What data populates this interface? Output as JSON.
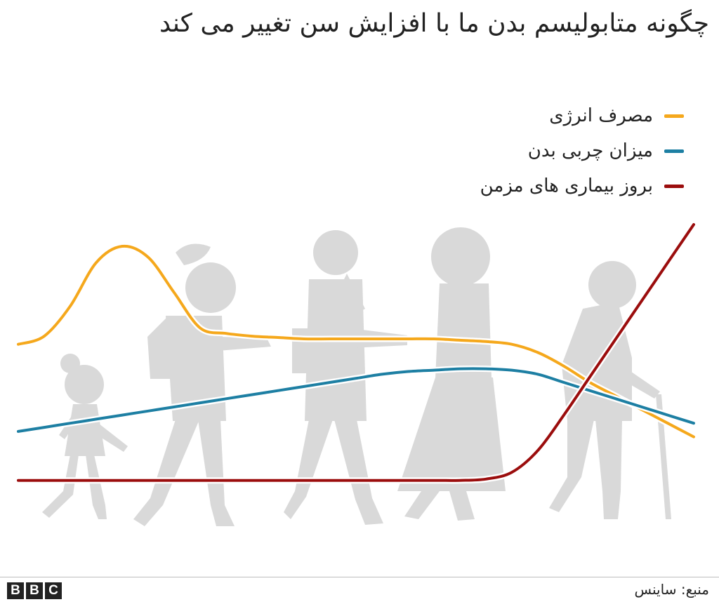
{
  "title": "چگونه متابولیسم بدن ما با افزایش سن تغییر می کند",
  "footer": {
    "source": "منبع: ساینس",
    "logo_letters": [
      "B",
      "B",
      "C"
    ]
  },
  "chart_data": {
    "type": "line",
    "title": "چگونه متابولیسم بدن ما با افزایش سن تغییر می کند",
    "xlabel": "",
    "ylabel": "",
    "grid": false,
    "legend_position": "top-right",
    "x": [
      0,
      1,
      2,
      3,
      4,
      5,
      6,
      7,
      8,
      9,
      10,
      11,
      12,
      13,
      14,
      15,
      16,
      17,
      18,
      19,
      20,
      21,
      22,
      23,
      24,
      25,
      26
    ],
    "xlim": [
      0,
      26
    ],
    "ylim": [
      0,
      100
    ],
    "series": [
      {
        "name": "مصرف انرژی",
        "color": "#f5a81c",
        "values": [
          56,
          59,
          70,
          86,
          92,
          88,
          75,
          62,
          60,
          59,
          58.5,
          58,
          58,
          58,
          58,
          58,
          58,
          57.5,
          57,
          56,
          53,
          48,
          42,
          37,
          32,
          27,
          22
        ]
      },
      {
        "name": "میزان چربی بدن",
        "color": "#1d7fa3",
        "values": [
          24,
          25.5,
          27,
          28.5,
          30,
          31.5,
          33,
          34.5,
          36,
          37.5,
          39,
          40.5,
          42,
          43.5,
          45,
          46,
          46.5,
          47,
          47,
          46.5,
          45,
          42,
          39,
          36,
          33,
          30,
          27
        ]
      },
      {
        "name": "بروز بیماری های مزمن",
        "color": "#9b0d0d",
        "values": [
          6,
          6,
          6,
          6,
          6,
          6,
          6,
          6,
          6,
          6,
          6,
          6,
          6,
          6,
          6,
          6,
          6,
          6,
          6.5,
          9,
          17,
          30,
          44,
          58,
          72,
          86,
          100
        ]
      }
    ]
  }
}
